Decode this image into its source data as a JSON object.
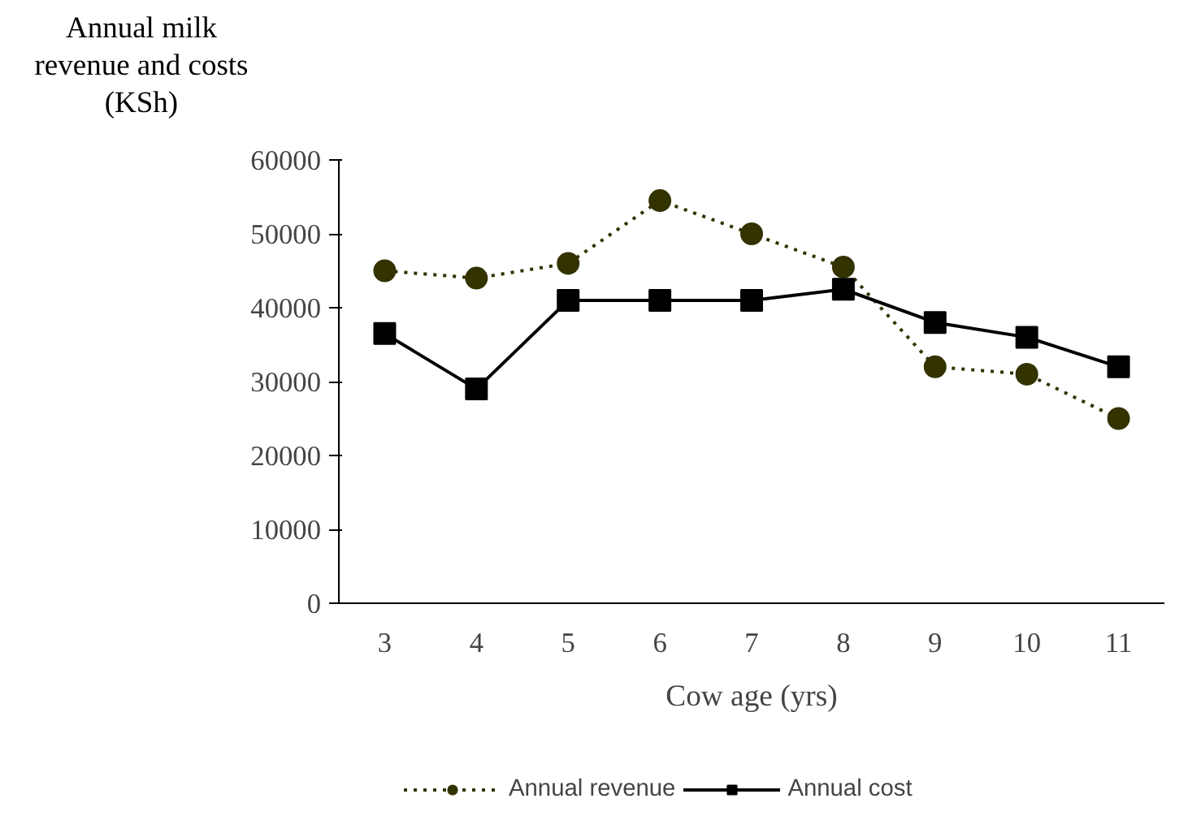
{
  "chart_data": {
    "type": "line",
    "xlabel": "Cow age (yrs)",
    "ylabel": "Annual milk revenue and costs (KSh)",
    "categories": [
      "3",
      "4",
      "5",
      "6",
      "7",
      "8",
      "9",
      "10",
      "11"
    ],
    "series": [
      {
        "name": "Annual revenue",
        "color": "#333300",
        "marker": "circle",
        "line_style": "dotted",
        "values": [
          45000,
          44000,
          46000,
          54500,
          50000,
          45500,
          32000,
          31000,
          25000
        ]
      },
      {
        "name": "Annual cost",
        "color": "#000000",
        "marker": "square",
        "line_style": "solid",
        "values": [
          36500,
          29000,
          41000,
          41000,
          41000,
          42500,
          38000,
          36000,
          32000
        ]
      }
    ],
    "ylim": [
      0,
      60000
    ],
    "yticks": [
      0,
      10000,
      20000,
      30000,
      40000,
      50000,
      60000
    ],
    "grid": false,
    "legend": "bottom"
  }
}
